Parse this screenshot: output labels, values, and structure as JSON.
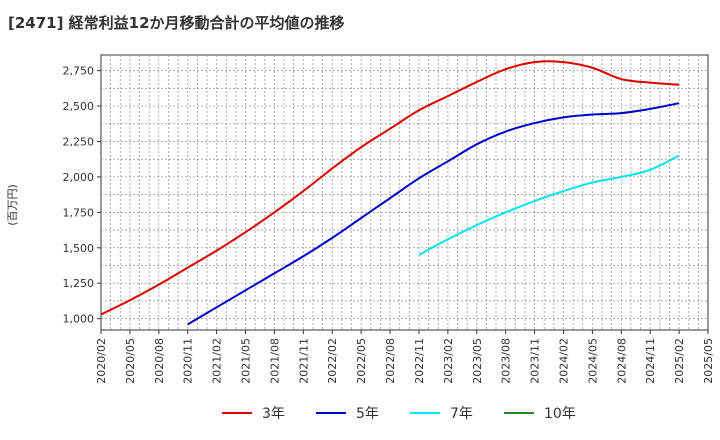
{
  "header": {
    "title": "[2471]  経常利益12か月移動合計の平均値の推移"
  },
  "chart_data": {
    "type": "line",
    "title": "[2471]  経常利益12か月移動合計の平均値の推移",
    "xlabel": "",
    "ylabel": "(百万円)",
    "ylim": [
      920,
      2860
    ],
    "yticks": [
      1000,
      1250,
      1500,
      1750,
      2000,
      2250,
      2500,
      2750
    ],
    "ytick_labels": [
      "1,000",
      "1,250",
      "1,500",
      "1,750",
      "2,000",
      "2,250",
      "2,500",
      "2,750"
    ],
    "xlim": [
      "2020/02",
      "2025/05"
    ],
    "xticks": [
      "2020/02",
      "2020/05",
      "2020/08",
      "2020/11",
      "2021/02",
      "2021/05",
      "2021/08",
      "2021/11",
      "2022/02",
      "2022/05",
      "2022/08",
      "2022/11",
      "2023/02",
      "2023/05",
      "2023/08",
      "2023/11",
      "2024/02",
      "2024/05",
      "2024/08",
      "2024/11",
      "2025/02",
      "2025/05"
    ],
    "grid": true,
    "legend_position": "bottom",
    "series": [
      {
        "name": "3年",
        "color": "#dd0000",
        "x": [
          "2020/02",
          "2020/05",
          "2020/08",
          "2020/11",
          "2021/02",
          "2021/05",
          "2021/08",
          "2021/11",
          "2022/02",
          "2022/05",
          "2022/08",
          "2022/11",
          "2023/02",
          "2023/05",
          "2023/08",
          "2023/11",
          "2024/02",
          "2024/05",
          "2024/08",
          "2024/11",
          "2025/02"
        ],
        "values": [
          1030,
          1130,
          1240,
          1360,
          1480,
          1610,
          1750,
          1900,
          2060,
          2210,
          2340,
          2470,
          2570,
          2670,
          2760,
          2810,
          2810,
          2770,
          2690,
          2665,
          2650
        ]
      },
      {
        "name": "5年",
        "color": "#0000cc",
        "x": [
          "2020/11",
          "2021/02",
          "2021/05",
          "2021/08",
          "2021/11",
          "2022/02",
          "2022/05",
          "2022/08",
          "2022/11",
          "2023/02",
          "2023/05",
          "2023/08",
          "2023/11",
          "2024/02",
          "2024/05",
          "2024/08",
          "2024/11",
          "2025/02"
        ],
        "values": [
          960,
          1080,
          1200,
          1320,
          1440,
          1570,
          1710,
          1850,
          1990,
          2110,
          2230,
          2320,
          2380,
          2420,
          2440,
          2450,
          2480,
          2520
        ]
      },
      {
        "name": "7年",
        "color": "#00e5ee",
        "x": [
          "2022/11",
          "2023/02",
          "2023/05",
          "2023/08",
          "2023/11",
          "2024/02",
          "2024/05",
          "2024/08",
          "2024/11",
          "2025/02"
        ],
        "values": [
          1450,
          1560,
          1660,
          1750,
          1830,
          1900,
          1960,
          2000,
          2050,
          2150
        ]
      },
      {
        "name": "10年",
        "color": "#228b22",
        "x": [],
        "values": []
      }
    ]
  }
}
